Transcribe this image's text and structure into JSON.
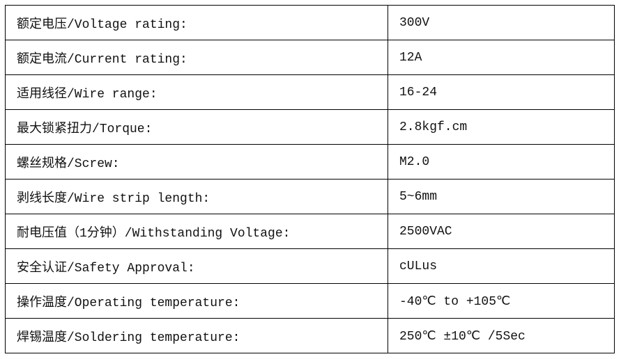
{
  "specs": [
    {
      "label": "额定电压/Voltage rating:",
      "value": "300V"
    },
    {
      "label": "额定电流/Current rating:",
      "value": "12A"
    },
    {
      "label": "适用线径/Wire range:",
      "value": "16-24"
    },
    {
      "label": "最大锁紧扭力/Torque:",
      "value": "2.8kgf.cm"
    },
    {
      "label": "螺丝规格/Screw:",
      "value": "M2.0"
    },
    {
      "label": "剥线长度/Wire strip length:",
      "value": "5~6mm"
    },
    {
      "label": "耐电压值（1分钟）/Withstanding Voltage:",
      "value": "2500VAC"
    },
    {
      "label": "安全认证/Safety Approval:",
      "value": "cULus"
    },
    {
      "label": "操作温度/Operating temperature:",
      "value": "-40℃ to +105℃"
    },
    {
      "label": "焊锡温度/Soldering temperature:",
      "value": "250℃ ±10℃ /5Sec"
    }
  ]
}
